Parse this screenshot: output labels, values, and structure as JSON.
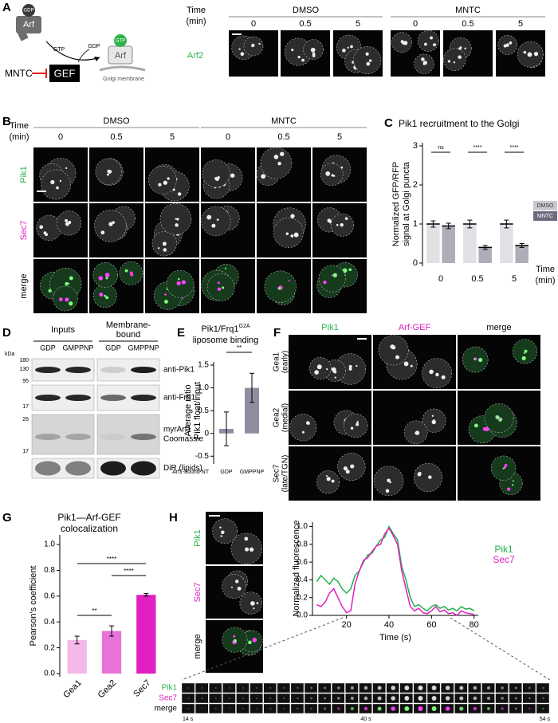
{
  "panels": {
    "A": {
      "letter": "A",
      "arf_gdp": "GDP",
      "arf": "Arf",
      "gtp_in": "GTP",
      "gdp_out": "GDP",
      "inhibitor": "MNTC",
      "gef": "GEF",
      "arf_gtp": "GTP",
      "arf_active": "Arf",
      "membrane": "Golgi membrane",
      "time_label": [
        "Time",
        "(min)"
      ],
      "conditions": [
        "DMSO",
        "MNTC"
      ],
      "times": [
        "0",
        "0.5",
        "5"
      ],
      "rows": [
        "Arf2"
      ]
    },
    "B": {
      "letter": "B",
      "time_label": [
        "Time",
        "(min)"
      ],
      "conditions": [
        "DMSO",
        "MNTC"
      ],
      "times": [
        "0",
        "0.5",
        "5"
      ],
      "rows": [
        "Pik1",
        "Sec7",
        "merge"
      ]
    },
    "D": {
      "letter": "D",
      "groups": [
        [
          "Inputs"
        ],
        [
          "Membrane-",
          "bound"
        ]
      ],
      "lanes": [
        "GDP",
        "GMPPNP",
        "GDP",
        "GMPPNP"
      ],
      "kda": "kDa",
      "markers": [
        "180",
        "130",
        "95",
        "17",
        "26",
        "17"
      ],
      "blots": [
        [
          "anti-Pik1"
        ],
        [
          "anti-Frq1"
        ],
        [
          "myrArf1",
          "Coomassie"
        ],
        [
          "DiR (lipids)"
        ]
      ]
    },
    "F": {
      "letter": "F",
      "columns": [
        "Pik1",
        "Arf-GEF",
        "merge"
      ],
      "rows": [
        [
          "Gea1",
          "(early)"
        ],
        [
          "Gea2",
          "(medial)"
        ],
        [
          "Sec7",
          "(late/TGN)"
        ]
      ]
    },
    "H": {
      "letter": "H",
      "rows": [
        "Pik1",
        "Sec7",
        "merge"
      ],
      "montage_rows": [
        "Pik1",
        "Sec7",
        "merge"
      ],
      "montage_times": [
        "14 s",
        "40 s",
        "54 s"
      ]
    }
  },
  "chart_data": [
    {
      "letter": "C",
      "type": "bar",
      "title": "Pik1 recruitment to the Golgi",
      "ylabel": [
        "Normalized GFP/RFP",
        "signal at Golgi puncta"
      ],
      "xlabel": [
        "Time",
        "(min)"
      ],
      "categories": [
        "0",
        "0.5",
        "5"
      ],
      "series": [
        {
          "name": "DMSO",
          "color": "#c9c9cf",
          "values": [
            1,
            1,
            1
          ],
          "errors": [
            0.08,
            0.1,
            0.1
          ]
        },
        {
          "name": "MNTC",
          "color": "#6b6b80",
          "values": [
            0.95,
            0.4,
            0.45
          ],
          "errors": [
            0.07,
            0.05,
            0.05
          ]
        }
      ],
      "significance": [
        "ns",
        "****",
        "****"
      ],
      "ylim": [
        0,
        3
      ],
      "yticks": [
        0,
        1,
        2,
        3
      ],
      "legend": "right"
    },
    {
      "letter": "E",
      "type": "bar",
      "title": "Pik1/Frq1",
      "title_sup": "G2A",
      "subtitle": "liposome binding",
      "ylabel": [
        "Average ratio",
        "Pik1 float/input"
      ],
      "xlabel": "Arf1-bound NT",
      "categories": [
        "GDP",
        "GMPPNP"
      ],
      "values": [
        0.1,
        1.0
      ],
      "errors": [
        0.37,
        0.32
      ],
      "color": "#8e8ea0",
      "significance": [
        "**"
      ],
      "ylim": [
        -0.6,
        1.5
      ],
      "yticks": [
        -0.5,
        0,
        0.5,
        {
          "value": 1,
          "label": "1.0"
        },
        1.5
      ]
    },
    {
      "letter": "G",
      "type": "bar",
      "title": [
        "Pik1—Arf-GEF",
        "colocalization"
      ],
      "ylabel": [
        "Pearson's coefficient"
      ],
      "categories": [
        "Gea1",
        "Gea2",
        "Sec7"
      ],
      "values": [
        0.26,
        0.33,
        0.61
      ],
      "errors": [
        0.03,
        0.04,
        0.01
      ],
      "colors": [
        "#f5b8e8",
        "#e873d8",
        "#e020c0"
      ],
      "significance": [
        "**",
        "****",
        "****"
      ],
      "ylim": [
        0,
        1.05
      ],
      "yticks": [
        {
          "value": 0,
          "label": "0.0"
        },
        0.2,
        0.4,
        0.6,
        0.8,
        {
          "value": 1,
          "label": "1.0"
        }
      ]
    },
    {
      "letter": "H",
      "type": "line",
      "ylabel": [
        "Normalized fluorescence"
      ],
      "xlabel": "Time (s)",
      "x": [
        6,
        8,
        10,
        12,
        14,
        16,
        18,
        20,
        22,
        24,
        26,
        28,
        30,
        32,
        34,
        36,
        38,
        40,
        42,
        44,
        46,
        48,
        50,
        52,
        54,
        56,
        58,
        60,
        62,
        64,
        66,
        68,
        70,
        72,
        74,
        76,
        78,
        80
      ],
      "series": [
        {
          "name": "Pik1",
          "color": "#22b04a",
          "values": [
            0.38,
            0.45,
            0.4,
            0.35,
            0.42,
            0.38,
            0.3,
            0.25,
            0.3,
            0.45,
            0.5,
            0.6,
            0.68,
            0.7,
            0.78,
            0.85,
            0.88,
            1.0,
            0.92,
            0.85,
            0.55,
            0.4,
            0.2,
            0.1,
            0.12,
            0.08,
            0.05,
            0.1,
            0.12,
            0.08,
            0.1,
            0.06,
            0.08,
            0.05,
            0.1,
            0.07,
            0.08,
            0.05
          ]
        },
        {
          "name": "Sec7",
          "color": "#e020c0",
          "values": [
            0.12,
            0.1,
            0.15,
            0.25,
            0.3,
            0.2,
            0.1,
            0.03,
            0.05,
            0.35,
            0.5,
            0.62,
            0.65,
            0.72,
            0.78,
            0.8,
            0.92,
            0.98,
            0.9,
            0.8,
            0.5,
            0.3,
            0.1,
            0.05,
            0.08,
            0.03,
            0.02,
            0.05,
            0.1,
            0.04,
            0.06,
            0.02,
            0.03,
            0.0,
            0.05,
            0.03,
            0.02,
            0.01
          ]
        }
      ],
      "xlim": [
        4,
        82
      ],
      "xticks": [
        20,
        40,
        60,
        80
      ],
      "ylim": [
        0,
        1.05
      ],
      "yticks": [
        {
          "value": 0,
          "label": "0.0"
        },
        0.2,
        0.4,
        0.6,
        0.8,
        {
          "value": 1,
          "label": "1.0"
        }
      ]
    }
  ]
}
